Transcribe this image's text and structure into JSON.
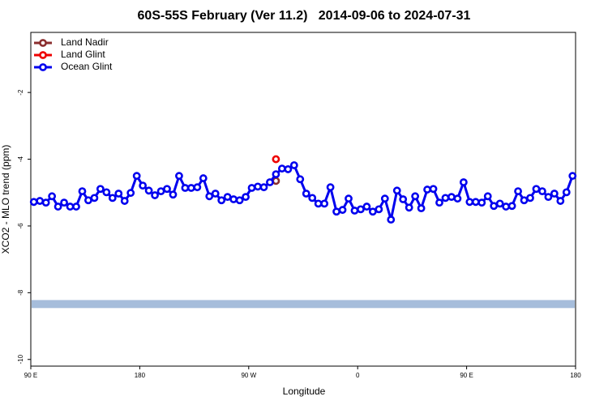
{
  "chart_data": {
    "type": "line",
    "title": "60S-55S February (Ver 11.2)   2014-09-06 to 2024-07-31",
    "xlabel": "Longitude",
    "ylabel": "XCO2 - MLO trend (ppm)",
    "xlim": [
      90,
      540
    ],
    "ylim": [
      -10.2,
      -0.2
    ],
    "xticks": [
      {
        "value": 90,
        "label": "90 E"
      },
      180,
      {
        "value": 270,
        "label": "90 W"
      },
      {
        "value": 360,
        "label": "0"
      },
      {
        "value": 450,
        "label": "90 E"
      },
      {
        "value": 540,
        "label": "180"
      }
    ],
    "yticks": [
      -2,
      -4,
      -6,
      -8,
      -10
    ],
    "legend": "top-left",
    "band": {
      "ymin": -8.46,
      "ymax": -8.22,
      "color": "#a6bddb"
    },
    "series": [
      {
        "name": "Land Nadir",
        "color": "#8b2e2e",
        "x": [
          292.5
        ],
        "values": [
          -4.65
        ]
      },
      {
        "name": "Land Glint",
        "color": "#ee0000",
        "x": [
          292.5
        ],
        "values": [
          -4.0
        ]
      },
      {
        "name": "Ocean Glint",
        "color": "#0000ee",
        "x": [
          92.5,
          97.5,
          102.5,
          107.5,
          112.5,
          117.5,
          122.5,
          127.5,
          132.5,
          137.5,
          142.5,
          147.5,
          152.5,
          157.5,
          162.5,
          167.5,
          172.5,
          177.5,
          182.5,
          187.5,
          192.5,
          197.5,
          202.5,
          207.5,
          212.5,
          217.5,
          222.5,
          227.5,
          232.5,
          237.5,
          242.5,
          247.5,
          252.5,
          257.5,
          262.5,
          267.5,
          272.5,
          277.5,
          282.5,
          287.5,
          292.5,
          297.5,
          302.5,
          307.5,
          312.5,
          317.5,
          322.5,
          327.5,
          332.5,
          337.5,
          342.5,
          347.5,
          352.5,
          357.5,
          362.5,
          367.5,
          372.5,
          377.5,
          382.5,
          387.5,
          392.5,
          397.5,
          402.5,
          407.5,
          412.5,
          417.5,
          422.5,
          427.5,
          432.5,
          437.5,
          442.5,
          447.5,
          452.5,
          457.5,
          462.5,
          467.5,
          472.5,
          477.5,
          482.5,
          487.5,
          492.5,
          497.5,
          502.5,
          507.5,
          512.5,
          517.5,
          522.5,
          527.5,
          532.5,
          537.5
        ],
        "values": [
          -5.28,
          -5.25,
          -5.3,
          -5.11,
          -5.42,
          -5.3,
          -5.42,
          -5.42,
          -4.96,
          -5.23,
          -5.16,
          -4.89,
          -4.99,
          -5.16,
          -5.03,
          -5.25,
          -5.01,
          -4.5,
          -4.79,
          -4.94,
          -5.08,
          -4.96,
          -4.89,
          -5.06,
          -4.5,
          -4.86,
          -4.86,
          -4.84,
          -4.57,
          -5.11,
          -5.03,
          -5.23,
          -5.13,
          -5.2,
          -5.23,
          -5.13,
          -4.86,
          -4.82,
          -4.84,
          -4.69,
          -4.45,
          -4.28,
          -4.3,
          -4.18,
          -4.6,
          -5.03,
          -5.16,
          -5.33,
          -5.33,
          -4.84,
          -5.57,
          -5.52,
          -5.18,
          -5.54,
          -5.5,
          -5.42,
          -5.57,
          -5.5,
          -5.18,
          -5.81,
          -4.94,
          -5.2,
          -5.45,
          -5.11,
          -5.47,
          -4.91,
          -4.89,
          -5.3,
          -5.16,
          -5.13,
          -5.18,
          -4.69,
          -5.28,
          -5.28,
          -5.3,
          -5.11,
          -5.4,
          -5.33,
          -5.42,
          -5.4,
          -4.96,
          -5.23,
          -5.16,
          -4.89,
          -4.96,
          -5.13,
          -5.03,
          -5.25,
          -4.99,
          -4.5
        ]
      }
    ]
  }
}
